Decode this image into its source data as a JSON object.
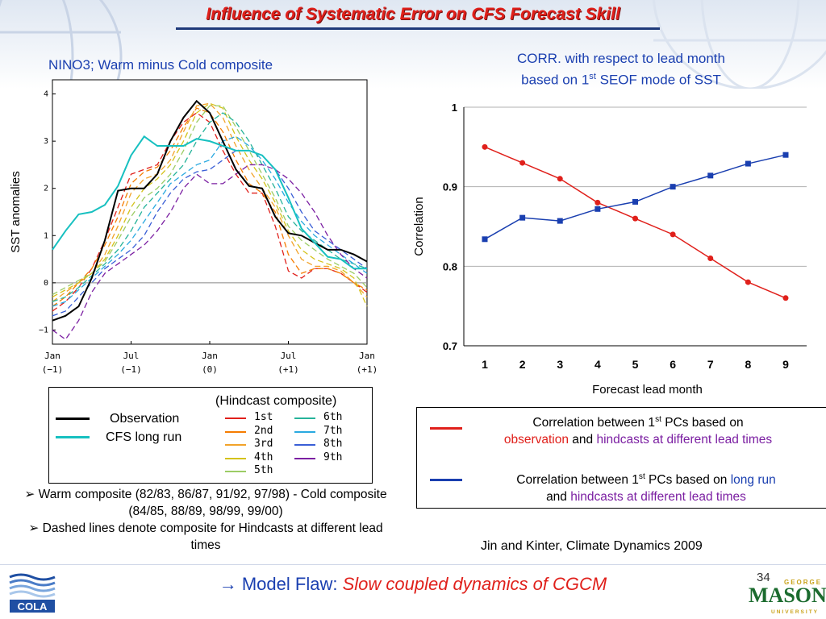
{
  "slide": {
    "title": "Influence of Systematic Error on CFS Forecast Skill",
    "page_number": "34",
    "bottom_message_prefix": "→ Model Flaw:",
    "bottom_message_em": "Slow coupled dynamics of CGCM",
    "citation": "Jin and Kinter, Climate Dynamics 2009",
    "logo_left": "COLA",
    "logo_right_top": "GEORGE",
    "logo_right_main": "MASON",
    "logo_right_bottom": "UNIVERSITY"
  },
  "left_panel": {
    "title": "NINO3; Warm minus Cold composite",
    "ylabel": "SST anomalies",
    "legend": {
      "hindcast_title": "(Hindcast composite)",
      "observation_label": "Observation",
      "cfs_label": "CFS long run"
    },
    "bullets": [
      "➢ Warm composite (82/83, 86/87, 91/92, 97/98) - Cold composite (84/85, 88/89, 98/99, 99/00)",
      "➢ Dashed lines denote composite for Hindcasts at different lead times"
    ]
  },
  "right_panel": {
    "title_line1": "CORR. with respect to lead month",
    "title_line2_pre": "based on 1",
    "title_line2_sup": "st",
    "title_line2_post": " SEOF mode of SST",
    "legend": {
      "red_a1": "Correlation between 1",
      "red_a_sup": "st",
      "red_a2": " PCs based on",
      "red_b1": "observation",
      "red_b2": " and ",
      "red_b3": "hindcasts at different lead times",
      "blue_a1": "Correlation between 1",
      "blue_a_sup": "st",
      "blue_a2": " PCs based on ",
      "blue_a3": "long run",
      "blue_b1": "and ",
      "blue_b2": "hindcasts at different lead times"
    }
  },
  "colors": {
    "title_red": "#e0201b",
    "accent_blue": "#1a3fb0",
    "purple": "#7b1fa2",
    "observation": "#000000",
    "cfs": "#17c0c0"
  },
  "chart_data": [
    {
      "type": "line",
      "xlabel": "",
      "ylabel": "SST anomalies",
      "x_ticks": [
        {
          "top": "Jan",
          "bottom": "(-1)"
        },
        {
          "top": "Jul",
          "bottom": "(-1)"
        },
        {
          "top": "Jan",
          "bottom": "(0)"
        },
        {
          "top": "Jul",
          "bottom": "(+1)"
        },
        {
          "top": "Jan",
          "bottom": "(+1)"
        }
      ],
      "xlim": [
        0,
        24
      ],
      "ylim": [
        -1.3,
        4.3
      ],
      "yticks": [
        -1,
        0,
        1,
        2,
        3,
        4
      ],
      "grid": "y=0 only",
      "series": [
        {
          "name": "Observation",
          "color": "#000000",
          "dash": false,
          "width": 2,
          "x": [
            0,
            1,
            2,
            3,
            4,
            5,
            6,
            7,
            8,
            9,
            10,
            11,
            12,
            13,
            14,
            15,
            16,
            17,
            18,
            19,
            20,
            21,
            22,
            23,
            24
          ],
          "y": [
            -0.8,
            -0.7,
            -0.5,
            0.1,
            0.9,
            1.95,
            2.0,
            2.0,
            2.3,
            3.0,
            3.5,
            3.85,
            3.6,
            3.0,
            2.4,
            2.05,
            2.0,
            1.4,
            1.05,
            1.0,
            0.85,
            0.7,
            0.7,
            0.6,
            0.45
          ]
        },
        {
          "name": "CFS long run",
          "color": "#17c0c0",
          "dash": false,
          "width": 2,
          "x": [
            0,
            1,
            2,
            3,
            4,
            5,
            6,
            7,
            8,
            9,
            10,
            11,
            12,
            13,
            14,
            15,
            16,
            17,
            18,
            19,
            20,
            21,
            22,
            23,
            24
          ],
          "y": [
            0.7,
            1.1,
            1.45,
            1.5,
            1.65,
            2.05,
            2.7,
            3.1,
            2.9,
            2.9,
            2.9,
            3.05,
            3.0,
            2.9,
            2.8,
            2.8,
            2.7,
            2.4,
            1.8,
            1.15,
            0.85,
            0.55,
            0.5,
            0.3,
            0.3
          ]
        },
        {
          "name": "1st",
          "color": "#e0201b",
          "dash": true,
          "width": 1.3,
          "x": [
            0,
            1,
            2,
            3,
            4,
            5,
            6,
            7,
            8,
            9,
            10,
            11,
            12,
            13,
            14,
            15,
            16,
            17,
            18,
            19,
            20,
            21,
            22,
            23,
            24
          ],
          "y": [
            -0.6,
            -0.4,
            -0.1,
            0.3,
            0.9,
            1.6,
            2.3,
            2.4,
            2.5,
            3.0,
            3.4,
            3.6,
            3.4,
            2.8,
            2.3,
            1.9,
            1.9,
            1.2,
            0.25,
            0.1,
            0.3,
            0.3,
            0.2,
            0.0,
            -0.2
          ]
        },
        {
          "name": "2nd",
          "color": "#f57c00",
          "dash": true,
          "width": 1.3,
          "x": [
            0,
            1,
            2,
            3,
            4,
            5,
            6,
            7,
            8,
            9,
            10,
            11,
            12,
            13,
            14,
            15,
            16,
            17,
            18,
            19,
            20,
            21,
            22,
            23,
            24
          ],
          "y": [
            -0.5,
            -0.3,
            0.0,
            0.3,
            0.8,
            1.4,
            2.1,
            2.35,
            2.45,
            2.8,
            3.3,
            3.7,
            3.6,
            3.2,
            2.6,
            2.1,
            1.9,
            1.5,
            0.6,
            0.2,
            0.3,
            0.3,
            0.2,
            0.0,
            -0.15
          ]
        },
        {
          "name": "3rd",
          "color": "#f2a32a",
          "dash": true,
          "width": 1.3,
          "x": [
            0,
            1,
            2,
            3,
            4,
            5,
            6,
            7,
            8,
            9,
            10,
            11,
            12,
            13,
            14,
            15,
            16,
            17,
            18,
            19,
            20,
            21,
            22,
            23,
            24
          ],
          "y": [
            -0.4,
            -0.2,
            0.0,
            0.2,
            0.6,
            1.2,
            1.9,
            2.2,
            2.3,
            2.6,
            3.2,
            3.75,
            3.8,
            3.5,
            2.9,
            2.4,
            2.0,
            1.6,
            1.0,
            0.5,
            0.35,
            0.35,
            0.25,
            0.0,
            -0.3
          ]
        },
        {
          "name": "4th",
          "color": "#d4c21a",
          "dash": true,
          "width": 1.3,
          "x": [
            0,
            1,
            2,
            3,
            4,
            5,
            6,
            7,
            8,
            9,
            10,
            11,
            12,
            13,
            14,
            15,
            16,
            17,
            18,
            19,
            20,
            21,
            22,
            23,
            24
          ],
          "y": [
            -0.3,
            -0.15,
            0.0,
            0.2,
            0.5,
            1.0,
            1.6,
            2.0,
            2.2,
            2.5,
            3.0,
            3.6,
            3.8,
            3.7,
            3.1,
            2.6,
            2.2,
            1.7,
            1.1,
            0.7,
            0.5,
            0.4,
            0.3,
            0.1,
            -0.5
          ]
        },
        {
          "name": "5th",
          "color": "#9ccc65",
          "dash": true,
          "width": 1.3,
          "x": [
            0,
            1,
            2,
            3,
            4,
            5,
            6,
            7,
            8,
            9,
            10,
            11,
            12,
            13,
            14,
            15,
            16,
            17,
            18,
            19,
            20,
            21,
            22,
            23,
            24
          ],
          "y": [
            -0.25,
            -0.1,
            0.05,
            0.2,
            0.45,
            0.9,
            1.4,
            1.8,
            2.0,
            2.3,
            2.8,
            3.4,
            3.75,
            3.75,
            3.3,
            2.8,
            2.3,
            1.8,
            1.2,
            0.9,
            0.7,
            0.5,
            0.35,
            0.2,
            -0.1
          ]
        },
        {
          "name": "6th",
          "color": "#26b39a",
          "dash": true,
          "width": 1.3,
          "x": [
            0,
            1,
            2,
            3,
            4,
            5,
            6,
            7,
            8,
            9,
            10,
            11,
            12,
            13,
            14,
            15,
            16,
            17,
            18,
            19,
            20,
            21,
            22,
            23,
            24
          ],
          "y": [
            -0.4,
            -0.3,
            -0.1,
            0.15,
            0.4,
            0.7,
            1.1,
            1.6,
            1.9,
            2.2,
            2.5,
            3.0,
            3.4,
            3.6,
            3.4,
            3.0,
            2.5,
            2.0,
            1.4,
            1.1,
            0.9,
            0.7,
            0.5,
            0.4,
            0.3
          ]
        },
        {
          "name": "7th",
          "color": "#29a9e0",
          "dash": true,
          "width": 1.3,
          "x": [
            0,
            1,
            2,
            3,
            4,
            5,
            6,
            7,
            8,
            9,
            10,
            11,
            12,
            13,
            14,
            15,
            16,
            17,
            18,
            19,
            20,
            21,
            22,
            23,
            24
          ],
          "y": [
            -0.5,
            -0.4,
            -0.15,
            0.1,
            0.35,
            0.6,
            0.9,
            1.3,
            1.7,
            2.1,
            2.3,
            2.5,
            2.6,
            3.0,
            3.1,
            2.9,
            2.6,
            2.2,
            1.7,
            1.3,
            1.0,
            0.8,
            0.6,
            0.4,
            0.2
          ]
        },
        {
          "name": "8th",
          "color": "#3a5fd6",
          "dash": true,
          "width": 1.3,
          "x": [
            0,
            1,
            2,
            3,
            4,
            5,
            6,
            7,
            8,
            9,
            10,
            11,
            12,
            13,
            14,
            15,
            16,
            17,
            18,
            19,
            20,
            21,
            22,
            23,
            24
          ],
          "y": [
            -0.7,
            -0.6,
            -0.3,
            0.0,
            0.3,
            0.5,
            0.7,
            1.0,
            1.5,
            1.9,
            2.2,
            2.35,
            2.4,
            2.6,
            2.8,
            2.8,
            2.7,
            2.4,
            2.0,
            1.5,
            1.1,
            0.9,
            0.7,
            0.5,
            0.3
          ]
        },
        {
          "name": "9th",
          "color": "#7b1fa2",
          "dash": true,
          "width": 1.3,
          "x": [
            0,
            1,
            2,
            3,
            4,
            5,
            6,
            7,
            8,
            9,
            10,
            11,
            12,
            13,
            14,
            15,
            16,
            17,
            18,
            19,
            20,
            21,
            22,
            23,
            24
          ],
          "y": [
            -1.0,
            -1.2,
            -0.8,
            -0.2,
            0.2,
            0.4,
            0.6,
            0.8,
            1.1,
            1.5,
            2.0,
            2.3,
            2.1,
            2.1,
            2.3,
            2.5,
            2.5,
            2.4,
            2.2,
            1.9,
            1.5,
            1.0,
            0.6,
            0.3,
            0.1
          ]
        }
      ]
    },
    {
      "type": "line",
      "xlabel": "Forecast lead month",
      "ylabel": "Correlation",
      "categories": [
        1,
        2,
        3,
        4,
        5,
        6,
        7,
        8,
        9
      ],
      "ylim": [
        0.7,
        1.0
      ],
      "yticks": [
        0.7,
        0.8,
        0.9,
        1
      ],
      "grid": true,
      "series": [
        {
          "name": "observation vs hindcasts",
          "color": "#e0201b",
          "marker": "circle",
          "values": [
            0.95,
            0.93,
            0.91,
            0.88,
            0.86,
            0.84,
            0.81,
            0.78,
            0.76
          ]
        },
        {
          "name": "long run vs hindcasts",
          "color": "#1a3fb0",
          "marker": "square",
          "values": [
            0.834,
            0.861,
            0.857,
            0.872,
            0.881,
            0.9,
            0.914,
            0.929,
            0.94
          ]
        }
      ]
    }
  ]
}
